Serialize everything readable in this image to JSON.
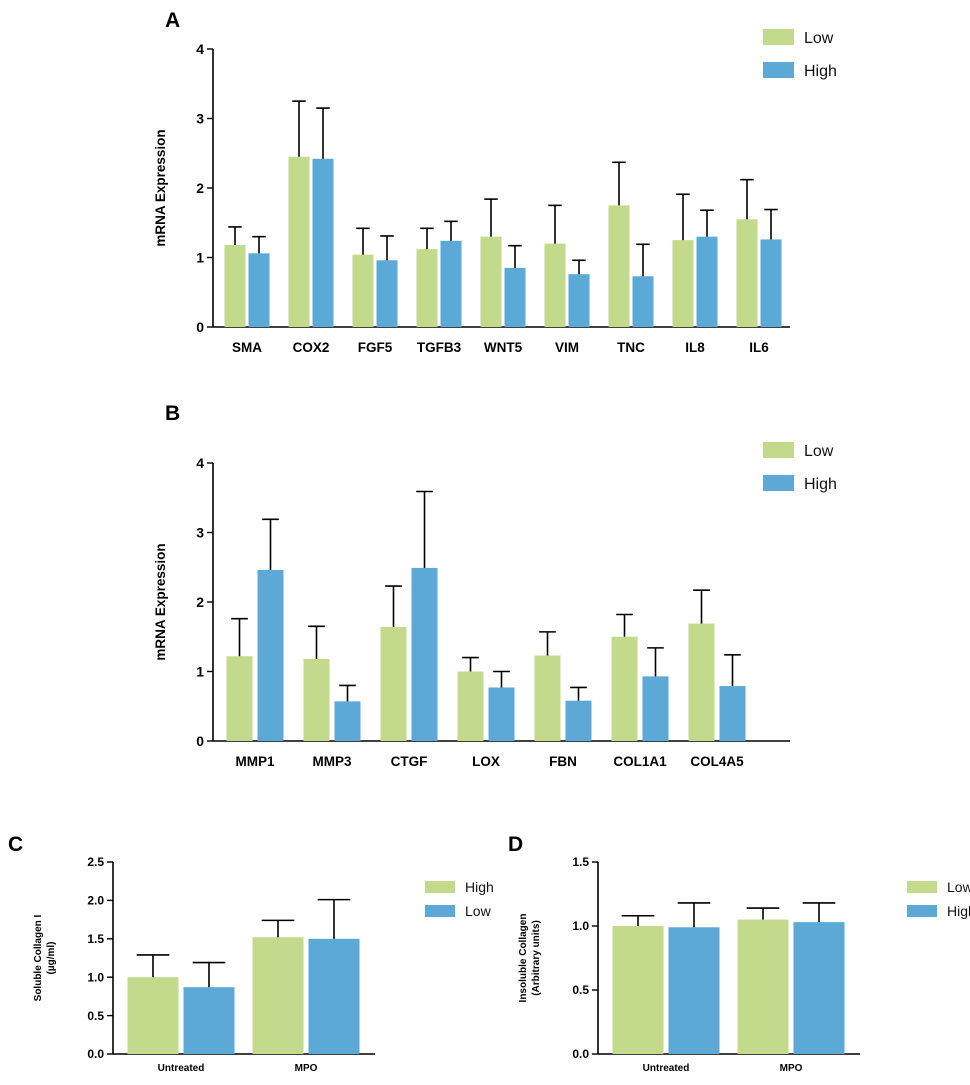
{
  "colors": {
    "green": "#c3d98c",
    "blue": "#5ca8d6",
    "axis": "#000000"
  },
  "chart_data": [
    {
      "panel": "A",
      "type": "bar",
      "ylabel": "mRNA Expression",
      "xlabel": "",
      "ylim": [
        0,
        4
      ],
      "yticks": [
        "0",
        "1",
        "2",
        "3",
        "4"
      ],
      "legend_position": "top-right",
      "categories": [
        "SMA",
        "COX2",
        "FGF5",
        "TGFB3",
        "WNT5",
        "VIM",
        "TNC",
        "IL8",
        "IL6"
      ],
      "series": [
        {
          "name": "Low",
          "color": "green",
          "values": [
            1.18,
            2.45,
            1.04,
            1.12,
            1.3,
            1.2,
            1.75,
            1.25,
            1.55
          ],
          "errors": [
            0.26,
            0.8,
            0.38,
            0.3,
            0.54,
            0.55,
            0.62,
            0.66,
            0.57
          ]
        },
        {
          "name": "High",
          "color": "blue",
          "values": [
            1.06,
            2.42,
            0.96,
            1.24,
            0.85,
            0.76,
            0.73,
            1.3,
            1.26
          ],
          "errors": [
            0.24,
            0.73,
            0.35,
            0.28,
            0.32,
            0.2,
            0.46,
            0.38,
            0.43
          ]
        }
      ]
    },
    {
      "panel": "B",
      "type": "bar",
      "ylabel": "mRNA Expression",
      "xlabel": "",
      "ylim": [
        0,
        4
      ],
      "yticks": [
        "0",
        "1",
        "2",
        "3",
        "4"
      ],
      "legend_position": "top-right",
      "categories": [
        "MMP1",
        "MMP3",
        "CTGF",
        "LOX",
        "FBN",
        "COL1A1",
        "COL4A5"
      ],
      "series": [
        {
          "name": "Low",
          "color": "green",
          "values": [
            1.22,
            1.18,
            1.64,
            1.0,
            1.23,
            1.5,
            1.69
          ],
          "errors": [
            0.54,
            0.47,
            0.59,
            0.2,
            0.34,
            0.32,
            0.48
          ]
        },
        {
          "name": "High",
          "color": "blue",
          "values": [
            2.46,
            0.57,
            2.49,
            0.77,
            0.58,
            0.93,
            0.79
          ],
          "errors": [
            0.73,
            0.23,
            1.1,
            0.23,
            0.19,
            0.41,
            0.45
          ]
        }
      ]
    },
    {
      "panel": "C",
      "type": "bar",
      "ylabel": "Soluble Collagen I",
      "ylabel2": "(µg/ml)",
      "xlabel": "",
      "ylim": [
        0,
        2.5
      ],
      "yticks": [
        "0.0",
        "0.5",
        "1.0",
        "1.5",
        "2.0",
        "2.5"
      ],
      "legend_position": "right",
      "categories": [
        "Untreated",
        "MPO"
      ],
      "series": [
        {
          "name": "High",
          "color": "green",
          "values": [
            1.0,
            1.52
          ],
          "errors": [
            0.29,
            0.22
          ]
        },
        {
          "name": "Low",
          "color": "blue",
          "values": [
            0.87,
            1.5
          ],
          "errors": [
            0.32,
            0.51
          ]
        }
      ]
    },
    {
      "panel": "D",
      "type": "bar",
      "ylabel": "Insoluble Collagen",
      "ylabel2": "(Arbitrary units)",
      "xlabel": "",
      "ylim": [
        0,
        1.5
      ],
      "yticks": [
        "0.0",
        "0.5",
        "1.0",
        "1.5"
      ],
      "legend_position": "right",
      "categories": [
        "Untreated",
        "MPO"
      ],
      "series": [
        {
          "name": "Low",
          "color": "green",
          "values": [
            1.0,
            1.05
          ],
          "errors": [
            0.08,
            0.09
          ]
        },
        {
          "name": "High",
          "color": "blue",
          "values": [
            0.99,
            1.03
          ],
          "errors": [
            0.19,
            0.15
          ]
        }
      ]
    }
  ]
}
